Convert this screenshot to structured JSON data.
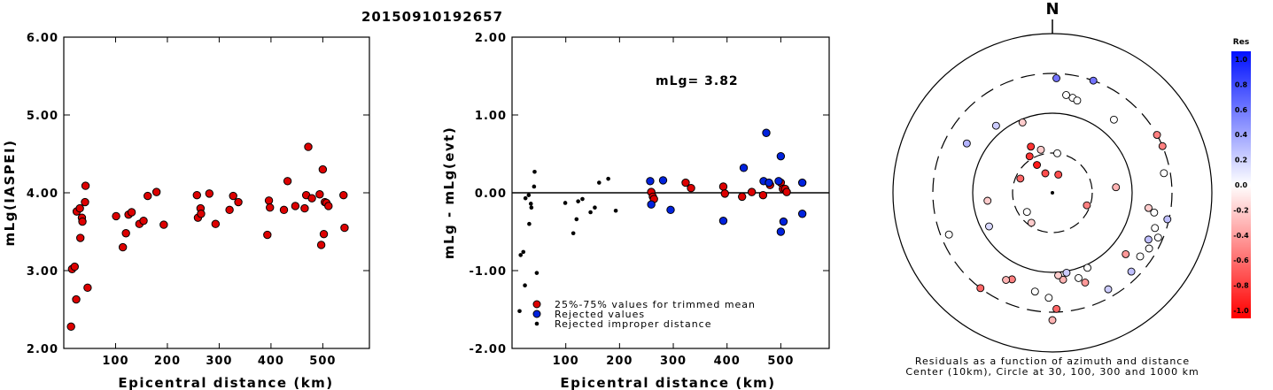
{
  "event_id": "20150910192657",
  "chart_data": [
    {
      "type": "scatter",
      "xlabel": "Epicentral distance (km)",
      "ylabel": "mLg(IASPEI)",
      "xlim": [
        0,
        590
      ],
      "ylim": [
        2.0,
        6.0
      ],
      "x_ticks": [
        "100",
        "200",
        "300",
        "400",
        "500"
      ],
      "y_ticks": [
        "2.00",
        "3.00",
        "4.00",
        "5.00",
        "6.00"
      ],
      "series": [
        {
          "color": "#dd0000",
          "points": [
            [
              14,
              2.28
            ],
            [
              16,
              3.02
            ],
            [
              21,
              3.05
            ],
            [
              24,
              2.63
            ],
            [
              25,
              3.76
            ],
            [
              31,
              3.8
            ],
            [
              32,
              3.42
            ],
            [
              35,
              3.68
            ],
            [
              36,
              3.63
            ],
            [
              41,
              3.88
            ],
            [
              42,
              4.09
            ],
            [
              46,
              2.78
            ],
            [
              101,
              3.7
            ],
            [
              114,
              3.3
            ],
            [
              120,
              3.48
            ],
            [
              125,
              3.72
            ],
            [
              131,
              3.75
            ],
            [
              146,
              3.6
            ],
            [
              154,
              3.64
            ],
            [
              162,
              3.96
            ],
            [
              179,
              4.01
            ],
            [
              193,
              3.59
            ],
            [
              257,
              3.97
            ],
            [
              259,
              3.68
            ],
            [
              264,
              3.8
            ],
            [
              265,
              3.73
            ],
            [
              281,
              3.99
            ],
            [
              293,
              3.6
            ],
            [
              320,
              3.78
            ],
            [
              327,
              3.96
            ],
            [
              337,
              3.88
            ],
            [
              393,
              3.46
            ],
            [
              396,
              3.9
            ],
            [
              398,
              3.81
            ],
            [
              425,
              3.78
            ],
            [
              432,
              4.15
            ],
            [
              447,
              3.83
            ],
            [
              465,
              3.8
            ],
            [
              468,
              3.97
            ],
            [
              472,
              4.59
            ],
            [
              479,
              3.93
            ],
            [
              494,
              3.98
            ],
            [
              497,
              3.33
            ],
            [
              500,
              4.3
            ],
            [
              502,
              3.47
            ],
            [
              504,
              3.88
            ],
            [
              507,
              3.87
            ],
            [
              511,
              3.83
            ],
            [
              540,
              3.97
            ],
            [
              542,
              3.55
            ]
          ]
        }
      ]
    },
    {
      "type": "scatter",
      "xlabel": "Epicentral distance (km)",
      "ylabel": "mLg - mLg(evt)",
      "xlim": [
        0,
        590
      ],
      "ylim": [
        -2.0,
        2.0
      ],
      "x_ticks": [
        "100",
        "200",
        "300",
        "400",
        "500"
      ],
      "y_ticks": [
        "-2.00",
        "-1.00",
        "0.00",
        "1.00",
        "2.00"
      ],
      "annotation": "mLg= 3.82",
      "legend": [
        {
          "label": "25%-75% values for trimmed mean",
          "color": "#dd0000"
        },
        {
          "label": "Rejected values",
          "color": "#0022dd"
        },
        {
          "label": "Rejected improper distance",
          "color": "#000000"
        }
      ],
      "series": [
        {
          "name": "25%-75% values for trimmed mean",
          "color": "#dd0000",
          "marker": "circle",
          "points": [
            [
              259,
              0.01
            ],
            [
              262,
              -0.05
            ],
            [
              264,
              -0.08
            ],
            [
              323,
              0.13
            ],
            [
              333,
              0.06
            ],
            [
              393,
              0.08
            ],
            [
              396,
              -0.01
            ],
            [
              428,
              -0.05
            ],
            [
              446,
              0.01
            ],
            [
              467,
              -0.03
            ],
            [
              480,
              0.1
            ],
            [
              500,
              0.13
            ],
            [
              504,
              0.05
            ],
            [
              508,
              0.05
            ],
            [
              511,
              0.01
            ]
          ]
        },
        {
          "name": "Rejected values",
          "color": "#0022dd",
          "marker": "circle",
          "points": [
            [
              257,
              0.15
            ],
            [
              259,
              -0.15
            ],
            [
              281,
              0.16
            ],
            [
              295,
              -0.22
            ],
            [
              393,
              -0.36
            ],
            [
              431,
              0.32
            ],
            [
              468,
              0.15
            ],
            [
              473,
              0.77
            ],
            [
              478,
              0.13
            ],
            [
              496,
              0.15
            ],
            [
              500,
              0.47
            ],
            [
              500,
              -0.5
            ],
            [
              505,
              -0.37
            ],
            [
              540,
              0.13
            ],
            [
              540,
              -0.27
            ]
          ]
        },
        {
          "name": "Rejected improper distance",
          "color": "#000000",
          "marker": "dot",
          "points": [
            [
              14,
              -1.52
            ],
            [
              16,
              -0.8
            ],
            [
              21,
              -0.76
            ],
            [
              24,
              -1.19
            ],
            [
              25,
              -0.07
            ],
            [
              31,
              -0.03
            ],
            [
              32,
              -0.4
            ],
            [
              35,
              -0.14
            ],
            [
              36,
              -0.19
            ],
            [
              41,
              0.08
            ],
            [
              42,
              0.27
            ],
            [
              46,
              -1.03
            ],
            [
              99,
              -0.13
            ],
            [
              114,
              -0.52
            ],
            [
              120,
              -0.34
            ],
            [
              123,
              -0.11
            ],
            [
              131,
              -0.08
            ],
            [
              146,
              -0.25
            ],
            [
              154,
              -0.19
            ],
            [
              162,
              0.13
            ],
            [
              179,
              0.18
            ],
            [
              193,
              -0.23
            ]
          ]
        }
      ]
    },
    {
      "type": "polar-scatter",
      "north_label": "N",
      "caption_line1": "Residuals as a function of azimuth and distance",
      "caption_line2": "Center (10km), Circle at 30, 100, 300 and 1000 km",
      "colorbar_title": "Res",
      "colorbar_ticks": [
        "1.0",
        "0.8",
        "0.6",
        "0.4",
        "0.2",
        "0.0",
        "-0.2",
        "-0.4",
        "-0.6",
        "-0.8",
        "-1.0"
      ],
      "rings_km": [
        30,
        100,
        300,
        1000
      ],
      "stations": [
        {
          "az": 2,
          "r": 0.72,
          "res": 0.55
        },
        {
          "az": 20,
          "r": 0.75,
          "res": 0.55
        },
        {
          "az": 12,
          "r": 0.61,
          "res": 0.0
        },
        {
          "az": 15,
          "r": 0.6,
          "res": 0.0
        },
        {
          "az": 8,
          "r": 0.62,
          "res": 0.0
        },
        {
          "az": 320,
          "r": 0.55,
          "res": 0.2
        },
        {
          "az": 300,
          "r": 0.62,
          "res": 0.3
        },
        {
          "az": 337,
          "r": 0.48,
          "res": -0.2
        },
        {
          "az": 40,
          "r": 0.6,
          "res": 0.0
        },
        {
          "az": 335,
          "r": 0.32,
          "res": -0.8
        },
        {
          "az": 328,
          "r": 0.27,
          "res": -0.8
        },
        {
          "az": 345,
          "r": 0.28,
          "res": -0.2
        },
        {
          "az": 7,
          "r": 0.25,
          "res": 0.0
        },
        {
          "az": 331,
          "r": 0.2,
          "res": -0.9
        },
        {
          "az": 340,
          "r": 0.13,
          "res": -0.7
        },
        {
          "az": 18,
          "r": 0.12,
          "res": -0.7
        },
        {
          "az": 294,
          "r": 0.22,
          "res": -0.6
        },
        {
          "az": 233,
          "r": 0.2,
          "res": 0.0
        },
        {
          "az": 215,
          "r": 0.23,
          "res": -0.2
        },
        {
          "az": 85,
          "r": 0.4,
          "res": -0.3
        },
        {
          "az": 110,
          "r": 0.23,
          "res": -0.5
        },
        {
          "az": 263,
          "r": 0.41,
          "res": -0.2
        },
        {
          "az": 242,
          "r": 0.45,
          "res": 0.15
        },
        {
          "az": 248,
          "r": 0.7,
          "res": 0.0
        },
        {
          "az": 61,
          "r": 0.75,
          "res": -0.5
        },
        {
          "az": 67,
          "r": 0.75,
          "res": -0.5
        },
        {
          "az": 80,
          "r": 0.71,
          "res": 0.0
        },
        {
          "az": 99,
          "r": 0.61,
          "res": -0.2
        },
        {
          "az": 101,
          "r": 0.65,
          "res": 0.0
        },
        {
          "az": 103,
          "r": 0.74,
          "res": 0.25
        },
        {
          "az": 109,
          "r": 0.68,
          "res": 0.0
        },
        {
          "az": 113,
          "r": 0.72,
          "res": 0.0
        },
        {
          "az": 116,
          "r": 0.67,
          "res": 0.25
        },
        {
          "az": 120,
          "r": 0.7,
          "res": 0.0
        },
        {
          "az": 126,
          "r": 0.68,
          "res": 0.0
        },
        {
          "az": 130,
          "r": 0.6,
          "res": -0.4
        },
        {
          "az": 135,
          "r": 0.7,
          "res": 0.25
        },
        {
          "az": 155,
          "r": 0.52,
          "res": 0.0
        },
        {
          "az": 160,
          "r": 0.6,
          "res": -0.4
        },
        {
          "az": 163,
          "r": 0.56,
          "res": 0.0
        },
        {
          "az": 170,
          "r": 0.51,
          "res": 0.2
        },
        {
          "az": 173,
          "r": 0.55,
          "res": -0.3
        },
        {
          "az": 176,
          "r": 0.52,
          "res": -0.2
        },
        {
          "az": 178,
          "r": 0.73,
          "res": -0.6
        },
        {
          "az": 180,
          "r": 0.8,
          "res": -0.3
        },
        {
          "az": 182,
          "r": 0.66,
          "res": 0.0
        },
        {
          "az": 190,
          "r": 0.63,
          "res": 0.0
        },
        {
          "az": 205,
          "r": 0.6,
          "res": -0.5
        },
        {
          "az": 208,
          "r": 0.62,
          "res": -0.3
        },
        {
          "az": 217,
          "r": 0.75,
          "res": -0.6
        },
        {
          "az": 150,
          "r": 0.7,
          "res": 0.2
        }
      ]
    }
  ]
}
